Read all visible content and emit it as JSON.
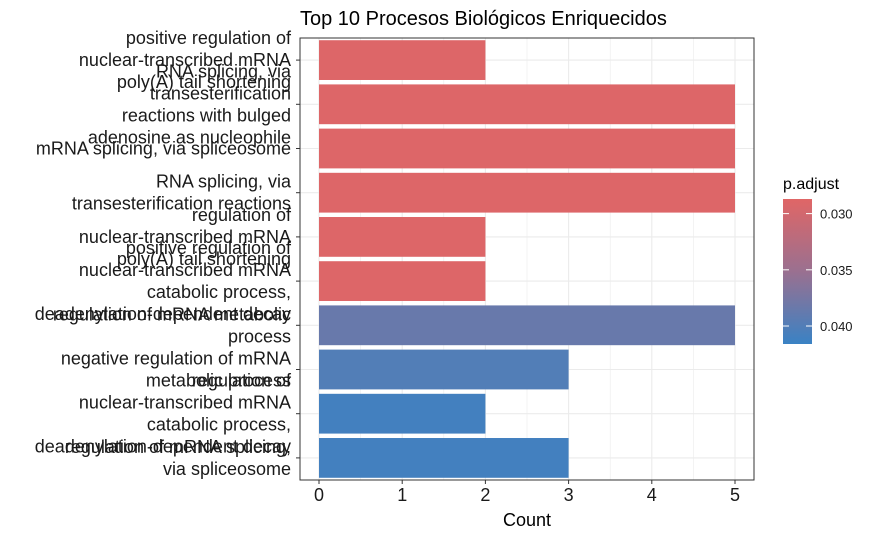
{
  "chart_data": {
    "type": "bar",
    "orientation": "horizontal",
    "title": "Top 10 Procesos Biológicos Enriquecidos",
    "xlabel": "Count",
    "ylabel": "",
    "xlim": [
      0,
      5
    ],
    "x_ticks": [
      "0",
      "1",
      "2",
      "3",
      "4",
      "5"
    ],
    "grid": true,
    "color_by": "p.adjust",
    "categories": [
      "positive regulation of\nnuclear-transcribed mRNA\npoly(A) tail shortening",
      "RNA splicing, via\ntransesterification\nreactions with bulged\nadenosine as nucleophile",
      "mRNA splicing, via spliceosome",
      "RNA splicing, via\ntransesterification reactions",
      "regulation of\nnuclear-transcribed mRNA\npoly(A) tail shortening",
      "positive regulation of\nnuclear-transcribed mRNA\ncatabolic process,\ndeadenylation-dependent decay",
      "regulation of mRNA metabolic\nprocess",
      "negative regulation of mRNA\nmetabolic process",
      "regulation of\nnuclear-transcribed mRNA\ncatabolic process,\ndeadenylation-dependent decay",
      "regulation of mRNA splicing,\nvia spliceosome"
    ],
    "values": [
      2,
      5,
      5,
      5,
      2,
      2,
      5,
      3,
      2,
      3
    ],
    "p_adjust": [
      0.029,
      0.029,
      0.029,
      0.029,
      0.029,
      0.029,
      0.0385,
      0.04,
      0.041,
      0.041
    ],
    "legend": {
      "title": "p.adjust",
      "placement": "right",
      "ticks": [
        "0.030",
        "0.035",
        "0.040"
      ],
      "tick_values": [
        0.03,
        0.035,
        0.04
      ],
      "range": [
        0.0287,
        0.0416
      ],
      "color_low_padj": "#E06666",
      "color_mid_padj": "#9A7090",
      "color_high_padj": "#3A82C4"
    }
  }
}
